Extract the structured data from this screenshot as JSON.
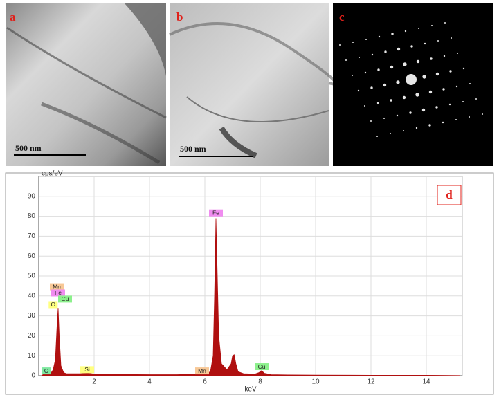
{
  "panels": [
    {
      "label": "a",
      "scale_bar": "500 nm"
    },
    {
      "label": "b",
      "scale_bar": "500 nm"
    },
    {
      "label": "c"
    }
  ],
  "chart_data": {
    "type": "area",
    "label": "d",
    "y_label": "cps/eV",
    "x_label": "keV",
    "color": "#b01010",
    "grid": true,
    "xlim": [
      0,
      15.3
    ],
    "ylim": [
      0,
      100
    ],
    "xticks": [
      2,
      4,
      6,
      8,
      10,
      12,
      14
    ],
    "yticks": [
      0,
      10,
      20,
      30,
      40,
      50,
      60,
      70,
      80,
      90
    ],
    "series": [
      {
        "name": "spectrum",
        "x": [
          0.1,
          0.2,
          0.27,
          0.35,
          0.45,
          0.52,
          0.6,
          0.66,
          0.7,
          0.74,
          0.8,
          0.9,
          1.0,
          1.2,
          1.5,
          1.7,
          1.74,
          1.8,
          2.0,
          3,
          4,
          5,
          5.8,
          5.9,
          6.0,
          6.2,
          6.3,
          6.35,
          6.4,
          6.45,
          6.5,
          6.6,
          6.8,
          6.95,
          7.0,
          7.06,
          7.12,
          7.2,
          7.4,
          7.8,
          7.95,
          8.05,
          8.15,
          8.4,
          9,
          10,
          12,
          14,
          15.2
        ],
        "values": [
          0,
          1,
          2,
          1,
          1.5,
          3,
          8,
          25,
          34,
          20,
          5,
          1.5,
          1,
          1,
          1,
          1.2,
          1.5,
          1.2,
          0.8,
          0.6,
          0.5,
          0.5,
          0.8,
          1.2,
          0.8,
          2,
          10,
          40,
          79,
          50,
          20,
          6,
          3,
          6,
          10,
          10.5,
          6,
          2,
          1,
          0.8,
          1.5,
          2.5,
          1.2,
          0.5,
          0.4,
          0.3,
          0.2,
          0.2,
          0.1
        ]
      }
    ],
    "annotations": [
      {
        "text": "C",
        "x": 0.27,
        "y": 2.4,
        "color": "#7fe8a0"
      },
      {
        "text": "O",
        "x": 0.52,
        "y": 35.6,
        "color": "#ffff80"
      },
      {
        "text": "Mn",
        "x": 0.65,
        "y": 44.6,
        "color": "#f8c896"
      },
      {
        "text": "Fe",
        "x": 0.7,
        "y": 41.5,
        "color": "#f08cf0"
      },
      {
        "text": "Cu",
        "x": 0.95,
        "y": 38.4,
        "color": "#8cf08c"
      },
      {
        "text": "Si",
        "x": 1.75,
        "y": 3,
        "color": "#ffff80"
      },
      {
        "text": "Mn",
        "x": 5.9,
        "y": 2.4,
        "color": "#f8c896"
      },
      {
        "text": "Fe",
        "x": 6.4,
        "y": 81.7,
        "color": "#f08cf0"
      },
      {
        "text": "Cu",
        "x": 8.05,
        "y": 4.5,
        "color": "#8cf08c"
      }
    ]
  }
}
